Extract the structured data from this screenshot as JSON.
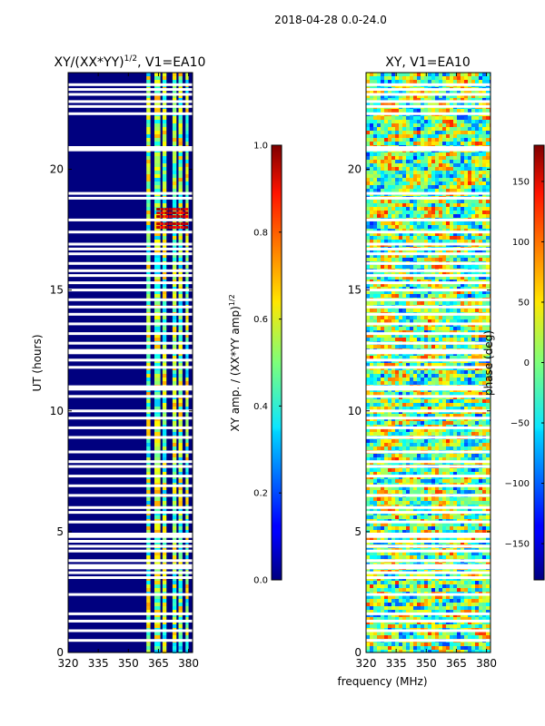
{
  "figure": {
    "suptitle": "2018-04-28 0.0-24.0"
  },
  "chart_data": [
    {
      "type": "heatmap",
      "title": "XY/(XX*YY)^{1/2}, V1=EA10",
      "title_parts": {
        "main": "XY/(XX*YY)",
        "sup": "1/2",
        "rest": ", V1=EA10"
      },
      "xlabel": "",
      "ylabel": "UT (hours)",
      "xlim": [
        320,
        382
      ],
      "ylim": [
        0,
        24
      ],
      "xticks": [
        320,
        335,
        350,
        365,
        380
      ],
      "yticks": [
        0,
        5,
        10,
        15,
        20
      ],
      "colorbar": {
        "label_main": "XY amp. / (XX*YY amp)",
        "label_sup": "1/2",
        "vmin": 0.0,
        "vmax": 1.0,
        "ticks": [
          0.0,
          0.2,
          0.4,
          0.6,
          0.8,
          1.0
        ],
        "tick_labels": [
          "0.0",
          "0.2",
          "0.4",
          "0.6",
          "0.8",
          "1.0"
        ]
      },
      "bright_channels_mhz": [
        [
          359,
          361
        ],
        [
          363,
          366
        ],
        [
          367,
          369
        ],
        [
          372,
          374
        ],
        [
          375,
          377
        ],
        [
          378.5,
          380
        ]
      ]
    },
    {
      "type": "heatmap",
      "title": "XY, V1=EA10",
      "xlabel": "frequency (MHz)",
      "ylabel": "",
      "xlim": [
        320,
        382
      ],
      "ylim": [
        0,
        24
      ],
      "xticks": [
        320,
        335,
        350,
        365,
        380
      ],
      "yticks": [
        0,
        5,
        10,
        15,
        20
      ],
      "colorbar": {
        "label": "phase (deg)",
        "vmin": -180,
        "vmax": 180,
        "ticks": [
          -150,
          -100,
          -50,
          0,
          50,
          100,
          150
        ],
        "tick_labels": [
          "−150",
          "−100",
          "−50",
          "0",
          "50",
          "100",
          "150"
        ]
      }
    }
  ],
  "flagged_hours": [
    0.5,
    0.9,
    1.3,
    1.6,
    2.4,
    3.1,
    3.3,
    3.5,
    3.6,
    3.8,
    4.2,
    4.4,
    4.6,
    4.8,
    4.9,
    5.4,
    5.8,
    6.0,
    6.5,
    6.9,
    7.3,
    7.7,
    7.9,
    8.3,
    8.9,
    9.3,
    9.7,
    10.0,
    10.6,
    10.9,
    11.0,
    11.8,
    12.1,
    12.4,
    12.5,
    12.8,
    13.2,
    13.6,
    14.0,
    14.3,
    14.6,
    15.0,
    15.3,
    15.6,
    15.8,
    16.1,
    16.5,
    16.7,
    16.9,
    17.4,
    17.9,
    18.8,
    19.0,
    20.8,
    20.9,
    22.3,
    22.6,
    22.8,
    23.1,
    23.3,
    23.5
  ]
}
